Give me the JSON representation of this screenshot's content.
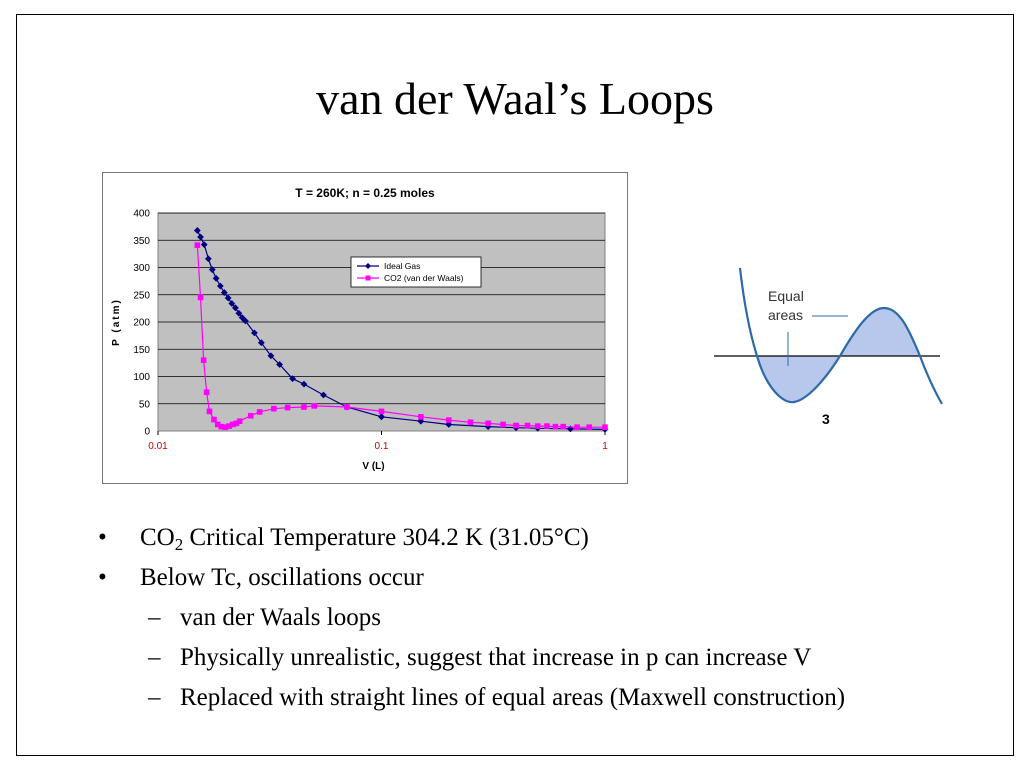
{
  "slide": {
    "title": "van der Waal’s Loops"
  },
  "chart_data": {
    "type": "scatter",
    "title": "T = 260K; n = 0.25 moles",
    "xlabel": "V (L)",
    "ylabel": "P (atm)",
    "xscale": "log",
    "xlim": [
      0.01,
      1
    ],
    "ylim": [
      0,
      400
    ],
    "xticks": [
      "0.01",
      "0.1",
      "1"
    ],
    "yticks": [
      "0",
      "50",
      "100",
      "150",
      "200",
      "250",
      "300",
      "350",
      "400"
    ],
    "grid": true,
    "legend_position": "top-center",
    "colors": {
      "ideal": "#000080",
      "vdw": "#ff00ff",
      "plot_bg": "#c0c0c0",
      "xtick": "#cc0000"
    },
    "series": [
      {
        "name": "Ideal Gas",
        "x": [
          0.015,
          0.0155,
          0.0161,
          0.0168,
          0.0175,
          0.0182,
          0.019,
          0.0198,
          0.0206,
          0.0214,
          0.0222,
          0.023,
          0.0238,
          0.0246,
          0.027,
          0.029,
          0.032,
          0.035,
          0.04,
          0.045,
          0.055,
          0.07,
          0.1,
          0.15,
          0.2,
          0.3,
          0.4,
          0.5,
          0.7,
          1.0
        ],
        "y": [
          368,
          356,
          342,
          316,
          296,
          280,
          266,
          254,
          244,
          234,
          226,
          216,
          208,
          202,
          180,
          162,
          138,
          122,
          96,
          86,
          66,
          44,
          26,
          18,
          12,
          8,
          6,
          5,
          4,
          3
        ]
      },
      {
        "name": "CO2 (van der Waals)",
        "x": [
          0.015,
          0.0155,
          0.016,
          0.0165,
          0.017,
          0.0178,
          0.0185,
          0.0192,
          0.02,
          0.0208,
          0.0216,
          0.0224,
          0.0232,
          0.026,
          0.0285,
          0.033,
          0.038,
          0.045,
          0.05,
          0.07,
          0.1,
          0.15,
          0.2,
          0.25,
          0.3,
          0.35,
          0.4,
          0.45,
          0.5,
          0.55,
          0.6,
          0.65,
          0.75,
          0.85,
          1.0
        ],
        "y": [
          341,
          245,
          130,
          71,
          36,
          21,
          12,
          8,
          7,
          9,
          12,
          14,
          18,
          28,
          35,
          41,
          43,
          44,
          46,
          44,
          36,
          26,
          20,
          16,
          14,
          12,
          10,
          10,
          9,
          9,
          8,
          8,
          7,
          7,
          7
        ]
      }
    ]
  },
  "loop_figure": {
    "label_equal": "Equal",
    "label_areas": "areas",
    "number": "3",
    "colors": {
      "curve": "#2e6aa8",
      "fill": "#b8c8ec",
      "line": "#000000"
    }
  },
  "bullets": [
    {
      "pre": "CO",
      "sub": "2",
      "post": " Critical Temperature 304.2 K (31.05°C)"
    },
    {
      "text": "Below Tc, oscillations occur"
    }
  ],
  "subbullets": [
    "van der Waals loops",
    "Physically unrealistic, suggest that increase in p can increase V",
    "Replaced with straight lines of equal areas (Maxwell construction)"
  ]
}
